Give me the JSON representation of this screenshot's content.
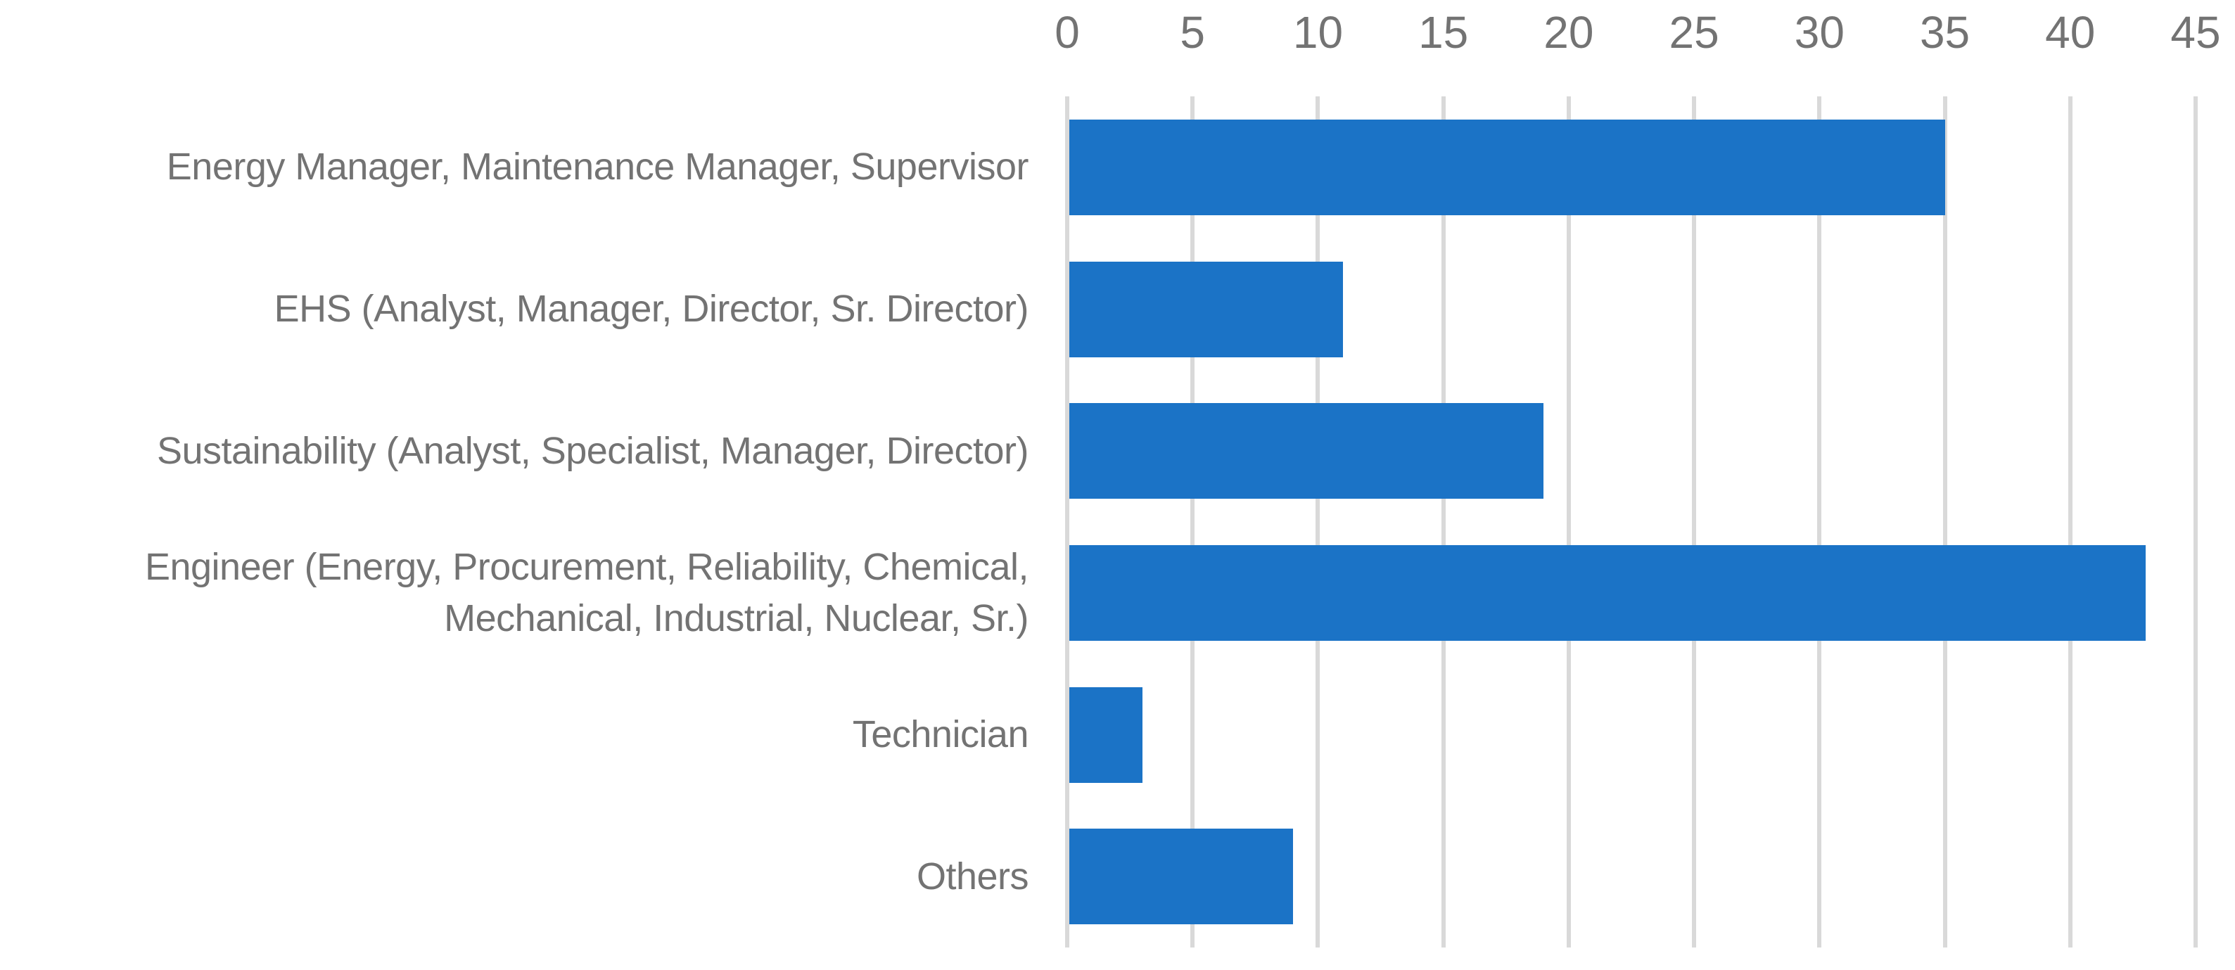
{
  "chart_data": {
    "type": "bar",
    "orientation": "horizontal",
    "title": "",
    "xlabel": "",
    "ylabel": "",
    "value_axis_position": "top",
    "grid": true,
    "legend": false,
    "xlim": [
      0,
      45
    ],
    "xticks": [
      0,
      5,
      10,
      15,
      20,
      25,
      30,
      35,
      40,
      45
    ],
    "categories": [
      "Energy Manager, Maintenance Manager, Supervisor",
      "EHS (Analyst, Manager, Director, Sr. Director)",
      "Sustainability (Analyst, Specialist, Manager, Director)",
      "Engineer (Energy, Procurement, Reliability, Chemical,\nMechanical, Industrial, Nuclear, Sr.)",
      "Technician",
      "Others"
    ],
    "values": [
      35,
      11,
      19,
      43,
      3,
      9
    ],
    "colors": {
      "bar": "#1B73C6",
      "gridline": "#D9D9D9",
      "axis_line": "#D9D9D9",
      "text": "#737373"
    }
  }
}
